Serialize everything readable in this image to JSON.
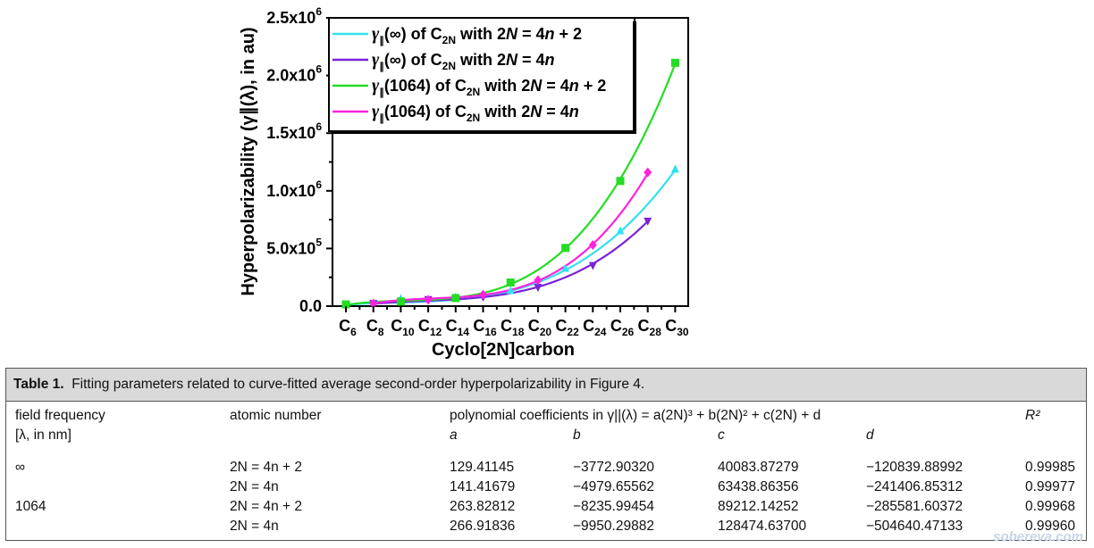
{
  "chart_data": {
    "type": "line",
    "xlabel": "Cyclo[2N]carbon",
    "ylabel": "Hyperpolarizability (γ∥(λ), in au)",
    "categories": [
      "C6",
      "C8",
      "C10",
      "C12",
      "C14",
      "C16",
      "C18",
      "C20",
      "C22",
      "C24",
      "C26",
      "C28",
      "C30"
    ],
    "category_subs": [
      "6",
      "8",
      "10",
      "12",
      "14",
      "16",
      "18",
      "20",
      "22",
      "24",
      "26",
      "28",
      "30"
    ],
    "y_ticks": [
      {
        "value": 0,
        "base": "0.0",
        "exp": ""
      },
      {
        "value": 500000,
        "base": "5.0x10",
        "exp": "5"
      },
      {
        "value": 1000000,
        "base": "1.0x10",
        "exp": "6"
      },
      {
        "value": 1500000,
        "base": "1.5x10",
        "exp": "6"
      },
      {
        "value": 2000000,
        "base": "2.0x10",
        "exp": "6"
      },
      {
        "value": 2500000,
        "base": "2.5x10",
        "exp": "6"
      }
    ],
    "ylim": [
      0,
      2500000
    ],
    "legend_position": "top-left",
    "series": [
      {
        "name": "γ∥(∞) of C2N with 2N = 4n + 2",
        "color": "#33e0f0",
        "marker": "triangle-up",
        "a": 129.41145,
        "b": -3772.9032,
        "c": 40083.87279,
        "d": -120839.88992,
        "x": [
          6,
          10,
          14,
          18,
          22,
          26,
          30
        ],
        "values": [
          9000,
          62000,
          76000,
          132000,
          325000,
          650000,
          1185000
        ]
      },
      {
        "name": "γ∥(∞) of C2N with 2N = 4n",
        "color": "#7a22d8",
        "marker": "triangle-down",
        "a": 141.41679,
        "b": -4979.65562,
        "c": 63438.86356,
        "d": -241406.85312,
        "x": [
          8,
          12,
          16,
          20,
          24,
          28
        ],
        "values": [
          26000,
          60000,
          80000,
          165000,
          355000,
          740000
        ]
      },
      {
        "name": "γ∥(1064) of C2N with 2N = 4n + 2",
        "color": "#22dd22",
        "marker": "square",
        "a": 263.82812,
        "b": -8235.99454,
        "c": 89212.14252,
        "d": -285581.60372,
        "x": [
          6,
          10,
          14,
          18,
          22,
          26,
          30
        ],
        "values": [
          15000,
          40000,
          70000,
          205000,
          505000,
          1085000,
          2110000
        ]
      },
      {
        "name": "γ∥(1064) of C2N with 2N = 4n",
        "color": "#ff22dd",
        "marker": "diamond",
        "a": 266.91836,
        "b": -9950.29882,
        "c": 128474.637,
        "d": -504640.47133,
        "x": [
          8,
          12,
          16,
          20,
          24,
          28
        ],
        "values": [
          22000,
          55000,
          100000,
          225000,
          530000,
          1160000
        ]
      }
    ],
    "legend": [
      {
        "pre": "γ",
        "sub1": "∥",
        "mid": "(∞) of C",
        "sub2": "2N",
        "post_a": " with 2",
        "post_it": "N",
        "post_b": " = 4",
        "post_it2": "n",
        "post_c": " + 2"
      },
      {
        "pre": "γ",
        "sub1": "∥",
        "mid": "(∞) of C",
        "sub2": "2N",
        "post_a": " with 2",
        "post_it": "N",
        "post_b": " = 4",
        "post_it2": "n",
        "post_c": ""
      },
      {
        "pre": "γ",
        "sub1": "∥",
        "mid": "(1064) of C",
        "sub2": "2N",
        "post_a": " with 2",
        "post_it": "N",
        "post_b": " = 4",
        "post_it2": "n",
        "post_c": " + 2"
      },
      {
        "pre": "γ",
        "sub1": "∥",
        "mid": "(1064) of C",
        "sub2": "2N",
        "post_a": " with 2",
        "post_it": "N",
        "post_b": " = 4",
        "post_it2": "n",
        "post_c": ""
      }
    ]
  },
  "table": {
    "caption_label": "Table 1.",
    "caption_text": "Fitting parameters related to curve-fitted average second-order hyperpolarizability in Figure 4.",
    "headers": {
      "freq": "field frequency",
      "freq_sub": "[λ, in nm]",
      "atomic": "atomic number",
      "poly": "polynomial coefficients in γ||(λ) = a(2N)³ + b(2N)² + c(2N) + d",
      "r2": "R²",
      "a": "a",
      "b": "b",
      "c": "c",
      "d": "d"
    },
    "rows": [
      {
        "freq": "∞",
        "atomic": "2N = 4n + 2",
        "a": "129.41145",
        "b": "−3772.90320",
        "c": "40083.87279",
        "d": "−120839.88992",
        "r2": "0.99985"
      },
      {
        "freq": "",
        "atomic": "2N = 4n",
        "a": "141.41679",
        "b": "−4979.65562",
        "c": "63438.86356",
        "d": "−241406.85312",
        "r2": "0.99977"
      },
      {
        "freq": "1064",
        "atomic": "2N = 4n + 2",
        "a": "263.82812",
        "b": "−8235.99454",
        "c": "89212.14252",
        "d": "−285581.60372",
        "r2": "0.99968"
      },
      {
        "freq": "",
        "atomic": "2N = 4n",
        "a": "266.91836",
        "b": "−9950.29882",
        "c": "128474.63700",
        "d": "−504640.47133",
        "r2": "0.99960"
      }
    ]
  },
  "watermark": "sobereva.com"
}
